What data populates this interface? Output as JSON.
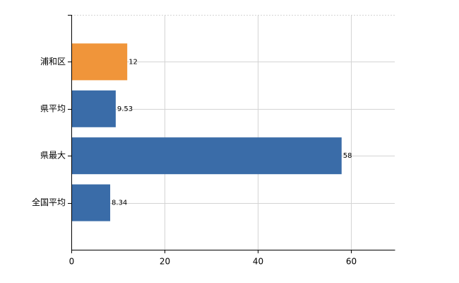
{
  "chart_data": {
    "type": "hbar",
    "categories": [
      "浦和区",
      "県平均",
      "県最大",
      "全国平均"
    ],
    "values": [
      12,
      9.53,
      58,
      8.34
    ],
    "colors": [
      "#f0953a",
      "#3a6ca8",
      "#3a6ca8",
      "#3a6ca8"
    ],
    "xlim": [
      0,
      69.4
    ],
    "xticks": [
      0,
      20,
      40,
      60
    ],
    "grid": true
  }
}
